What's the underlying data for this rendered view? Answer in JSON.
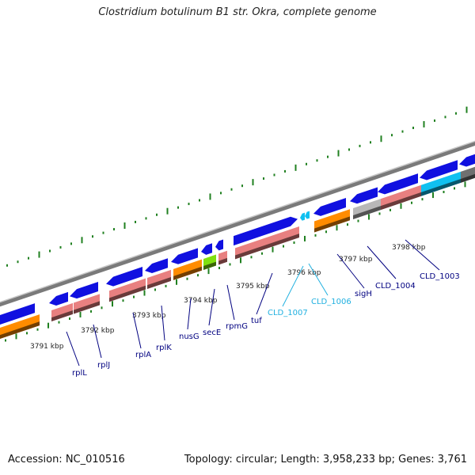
{
  "title": "Clostridium botulinum B1 str. Okra, complete genome",
  "accession": "Accession: NC_010516",
  "topology": "Topology: circular; Length: 3,958,233 bp; Genes: 3,761",
  "colors": {
    "cds_forward": "#1010e0",
    "cds_reverse_label": "#000080",
    "rna_pink": "#e88080",
    "orange": "#ff8c00",
    "lime": "#80e010",
    "gray": "#b8b8b8",
    "cyan": "#10c0f0",
    "dark_gray": "#707070",
    "backbone": "#888888",
    "gc_dots": "#208020",
    "highlight_label": "#20b0e0"
  },
  "scale_labels": [
    "3791 kbp",
    "3792 kbp",
    "3793 kbp",
    "3794 kbp",
    "3795 kbp",
    "3796 kbp",
    "3797 kbp",
    "3798 kbp"
  ],
  "gene_labels": [
    {
      "text": "rplL",
      "color": "#000080"
    },
    {
      "text": "rplJ",
      "color": "#000080"
    },
    {
      "text": "rplA",
      "color": "#000080"
    },
    {
      "text": "rplK",
      "color": "#000080"
    },
    {
      "text": "nusG",
      "color": "#000080"
    },
    {
      "text": "secE",
      "color": "#000080"
    },
    {
      "text": "rpmG",
      "color": "#000080"
    },
    {
      "text": "tuf",
      "color": "#000080"
    },
    {
      "text": "CLD_1007",
      "color": "#20b0e0"
    },
    {
      "text": "CLD_1006",
      "color": "#20b0e0"
    },
    {
      "text": "sigH",
      "color": "#000080"
    },
    {
      "text": "CLD_1004",
      "color": "#000080"
    },
    {
      "text": "CLD_1003",
      "color": "#000080"
    }
  ]
}
